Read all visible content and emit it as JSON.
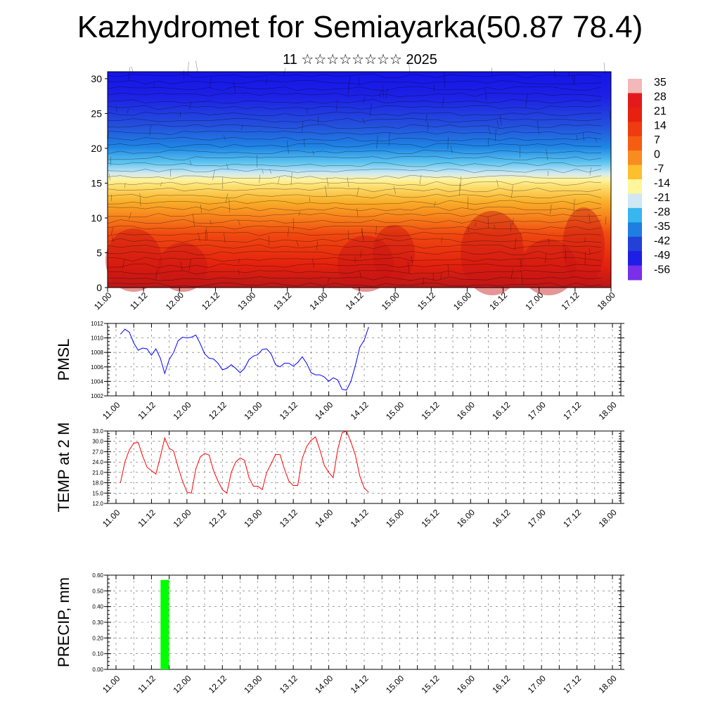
{
  "header": {
    "title": "Kazhydromet for Semiayarka(50.87 78.4)",
    "subtitle": "11 ☆☆☆☆☆☆☆☆ 2025"
  },
  "chart_data": [
    {
      "type": "heatmap",
      "description_key": "cross-section",
      "ylim": [
        0,
        31
      ],
      "yticks": [
        0,
        5,
        10,
        15,
        20,
        25,
        30
      ],
      "xticks": [
        "11.00",
        "11.12",
        "12.00",
        "12.12",
        "13.00",
        "13.12",
        "14.00",
        "14.12",
        "15.00",
        "15.12",
        "16.00",
        "16.12",
        "17.00",
        "17.12",
        "18.00"
      ],
      "colorbar": {
        "labels": [
          "35",
          "28",
          "21",
          "14",
          "7",
          "0",
          "-7",
          "-14",
          "-21",
          "-28",
          "-35",
          "-42",
          "-49",
          "-56"
        ],
        "colors": [
          "#f4b8b8",
          "#e31a1c",
          "#e8200f",
          "#f03a10",
          "#f55e12",
          "#f98c20",
          "#fcbf2e",
          "#fff59a",
          "#cfe8f3",
          "#38b6ee",
          "#1e7fe0",
          "#2340d8",
          "#1e1ee6",
          "#7a2fe8"
        ]
      }
    },
    {
      "type": "line",
      "ylabel": "PMSL",
      "ylim": [
        1002,
        1012
      ],
      "yticks": [
        "1002",
        "1004",
        "1006",
        "1008",
        "1010",
        "1012"
      ],
      "xticks": [
        "11.00",
        "11.12",
        "12.00",
        "12.12",
        "13.00",
        "13.12",
        "14.00",
        "14.12",
        "15.00",
        "15.12",
        "16.00",
        "16.12",
        "17.00",
        "17.12",
        "18.00"
      ],
      "color": "#0000ff",
      "values": [
        1010.5,
        1011.2,
        1010.8,
        1009.3,
        1008.3,
        1008.6,
        1008.5,
        1007.6,
        1008.5,
        1007.2,
        1005.1,
        1007.0,
        1008.0,
        1009.6,
        1010.1,
        1010.0,
        1010.1,
        1010.4,
        1009.2,
        1007.8,
        1007.2,
        1007.1,
        1006.5,
        1005.6,
        1005.8,
        1006.3,
        1005.8,
        1005.2,
        1005.8,
        1007.0,
        1007.5,
        1007.7,
        1008.4,
        1008.5,
        1007.8,
        1006.3,
        1006.0,
        1006.5,
        1006.5,
        1006.1,
        1006.6,
        1007.4,
        1006.5,
        1005.2,
        1004.9,
        1004.9,
        1004.6,
        1004.0,
        1004.5,
        1004.2,
        1002.9,
        1002.8,
        1004.0,
        1006.2,
        1008.7,
        1009.7,
        1011.5
      ],
      "x_start": 0.125,
      "x_step": 0.125
    },
    {
      "type": "line",
      "ylabel": "TEMP at 2 M",
      "ylim": [
        12.0,
        33.0
      ],
      "yticks": [
        "12.0",
        "15.0",
        "18.0",
        "21.0",
        "24.0",
        "27.0",
        "30.0",
        "33.0"
      ],
      "xticks": [
        "11.00",
        "11.12",
        "12.00",
        "12.12",
        "13.00",
        "13.12",
        "14.00",
        "14.12",
        "15.00",
        "15.12",
        "16.00",
        "16.12",
        "17.00",
        "17.12",
        "18.00"
      ],
      "color": "#ff0000",
      "values": [
        18.0,
        24.0,
        27.5,
        29.5,
        29.7,
        25.8,
        22.5,
        21.5,
        20.5,
        25.5,
        31.0,
        28.0,
        27.2,
        22.5,
        18.5,
        15.3,
        15.0,
        22.0,
        25.5,
        26.5,
        26.0,
        21.5,
        18.5,
        16.0,
        15.0,
        21.0,
        24.0,
        25.2,
        24.5,
        19.5,
        17.0,
        17.0,
        16.0,
        21.0,
        23.5,
        26.2,
        26.2,
        22.0,
        18.5,
        17.2,
        17.2,
        25.0,
        28.5,
        30.3,
        31.3,
        27.5,
        23.0,
        21.0,
        19.5,
        27.5,
        32.5,
        33.0,
        29.8,
        26.0,
        20.0,
        16.5,
        15.2
      ],
      "x_start": 0.125,
      "x_step": 0.125
    },
    {
      "type": "bar",
      "ylabel": "PRECIP, mm",
      "ylim": [
        0,
        0.6
      ],
      "yticks": [
        "0.00",
        "0.10",
        "0.20",
        "0.30",
        "0.40",
        "0.50",
        "0.60"
      ],
      "xticks": [
        "11.00",
        "11.12",
        "12.00",
        "12.12",
        "13.00",
        "13.12",
        "14.00",
        "14.12",
        "15.00",
        "15.12",
        "16.00",
        "16.12",
        "17.00",
        "17.12",
        "18.00"
      ],
      "color": "#00ff00",
      "bars": [
        {
          "x": 1.375,
          "value": 0.57
        }
      ]
    }
  ]
}
